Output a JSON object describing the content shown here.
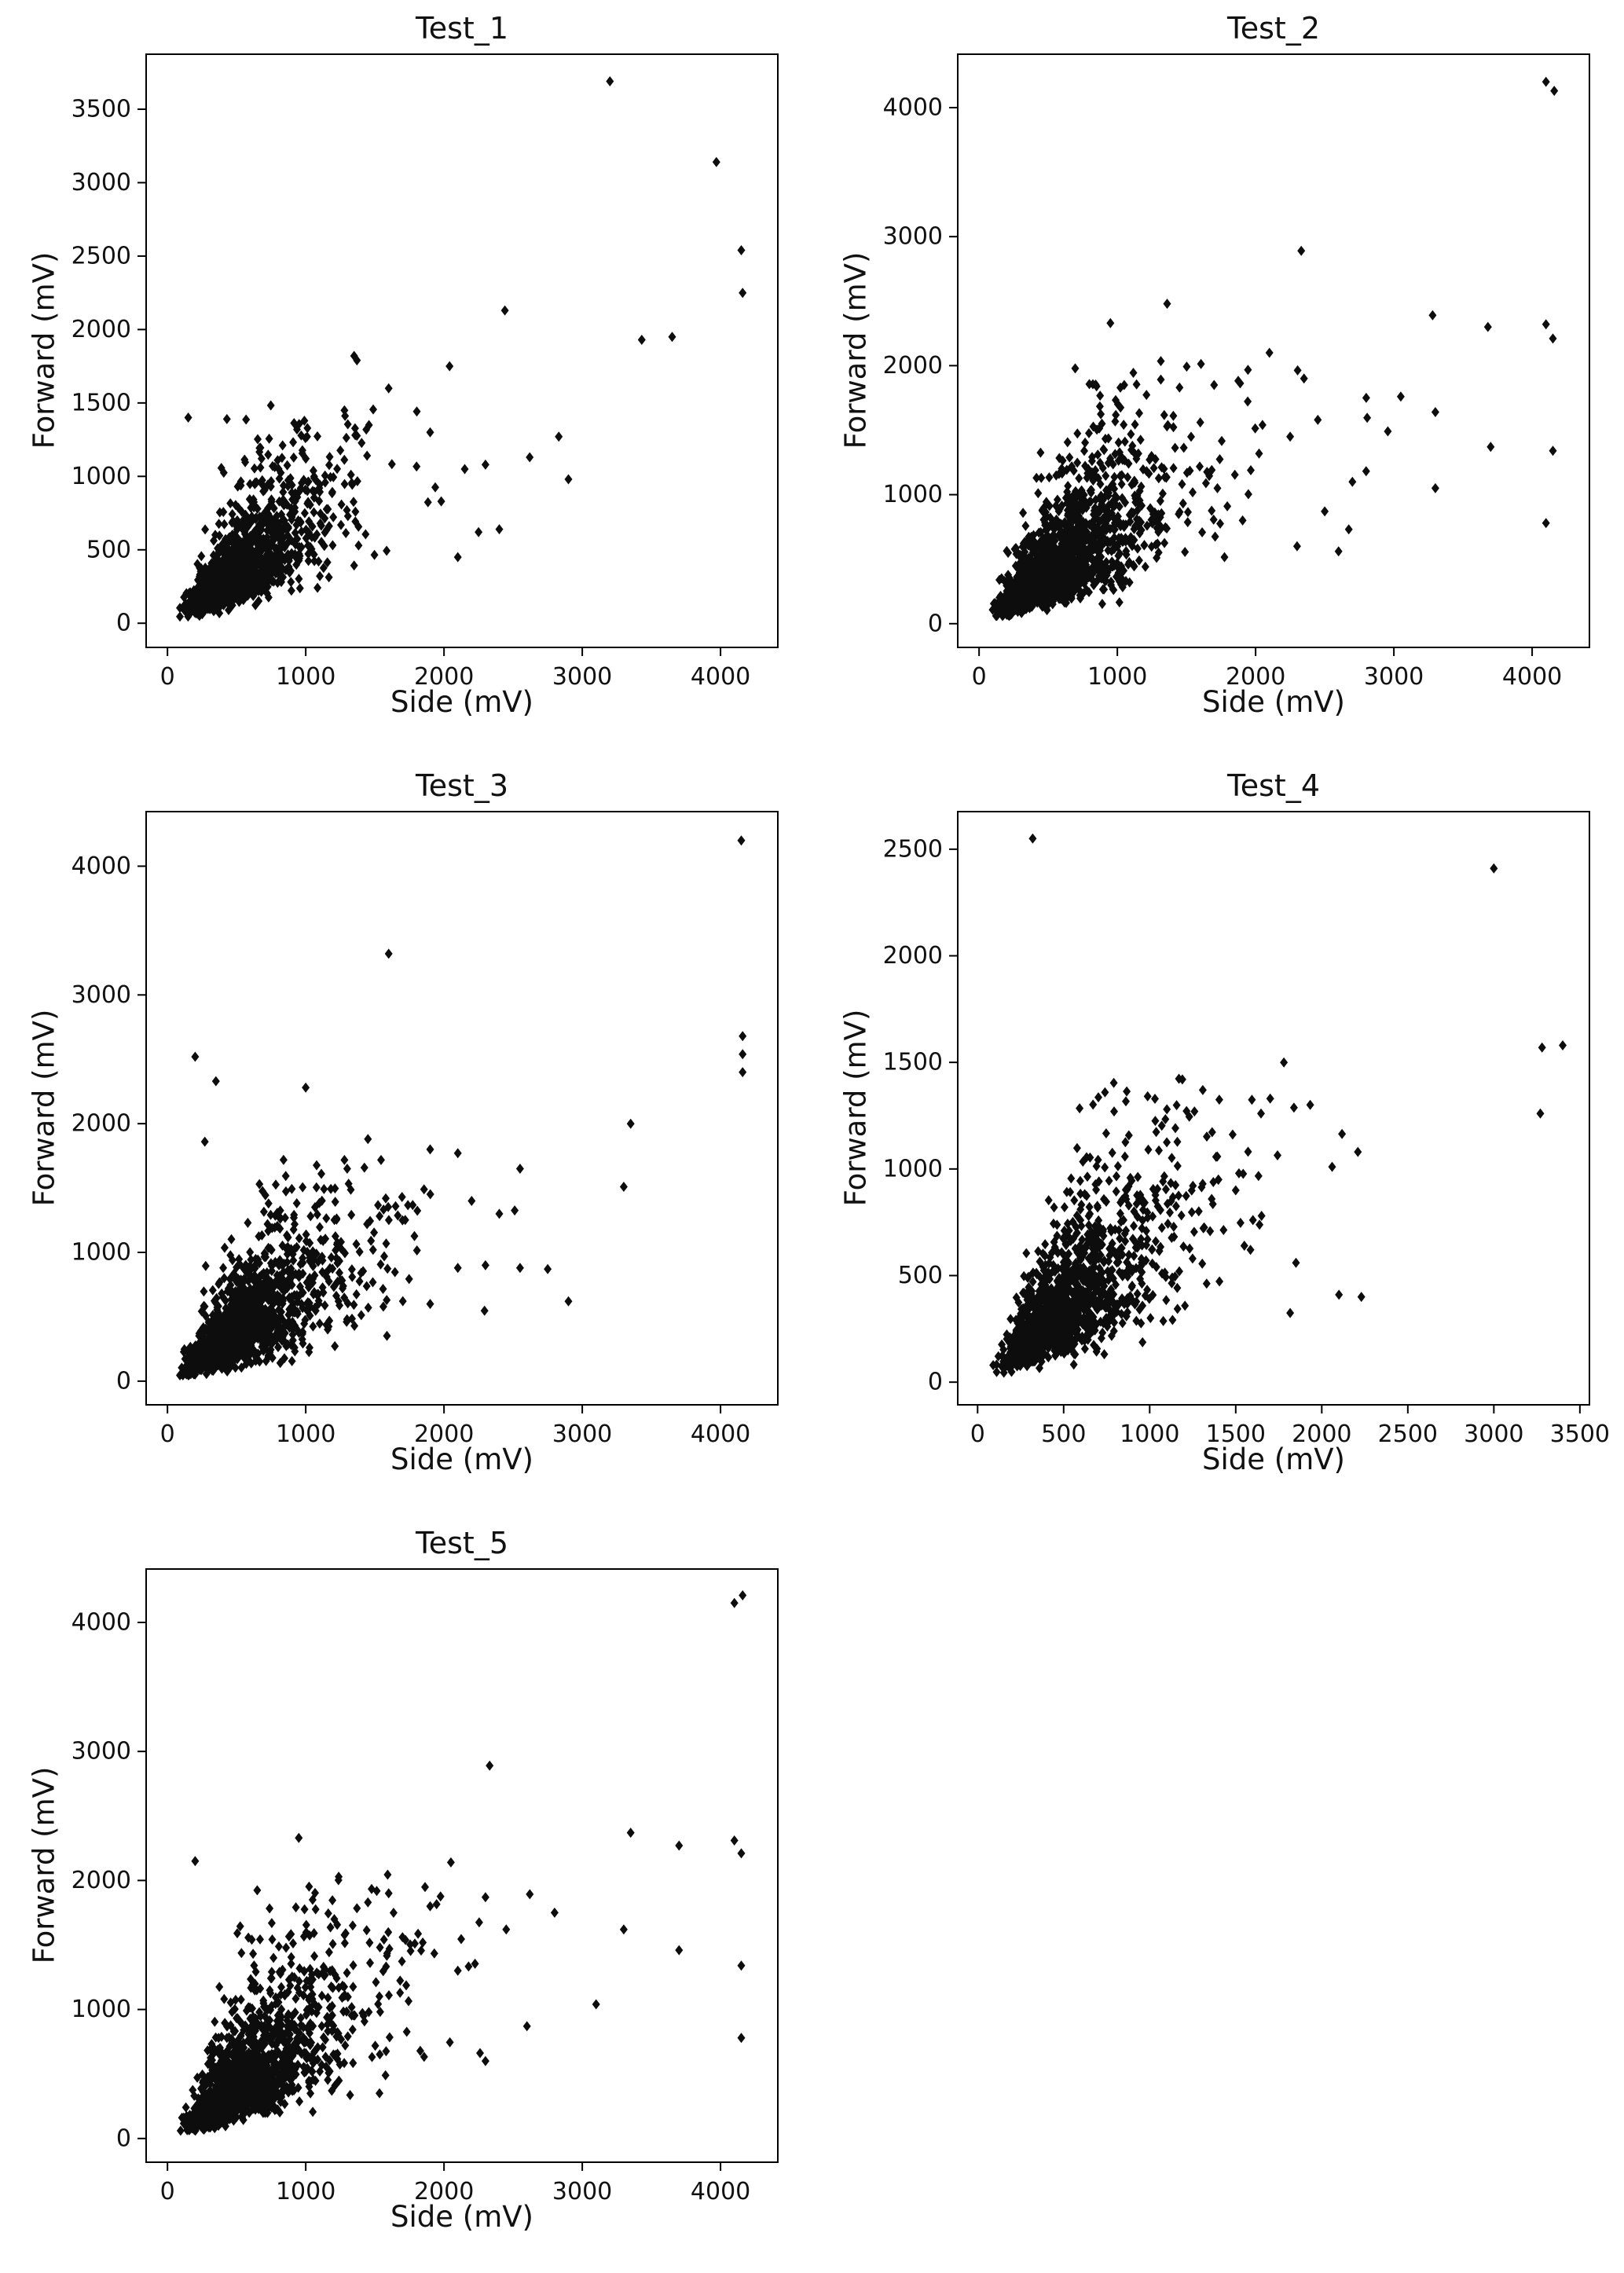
{
  "page": {
    "background": "#ffffff",
    "marker_color": "#0d0d0d",
    "axis_color": "#000000"
  },
  "chart_data": [
    {
      "type": "scatter",
      "title": "Test_1",
      "xlabel": "Side (mV)",
      "ylabel": "Forward (mV)",
      "xlim": [
        -160,
        4420
      ],
      "ylim": [
        -170,
        3880
      ],
      "xticks": [
        0,
        1000,
        2000,
        3000,
        4000
      ],
      "yticks": [
        0,
        500,
        1000,
        1500,
        2000,
        2500,
        3000,
        3500
      ],
      "grid": false,
      "legend": null,
      "marker": {
        "shape": "thin-diamond",
        "color": "#0d0d0d"
      },
      "outliers": [
        [
          3200,
          3690
        ],
        [
          3970,
          3140
        ],
        [
          4150,
          2540
        ],
        [
          4160,
          2250
        ],
        [
          2440,
          2130
        ],
        [
          3650,
          1950
        ],
        [
          3430,
          1930
        ],
        [
          2040,
          1750
        ],
        [
          1350,
          1820
        ],
        [
          1370,
          1790
        ],
        [
          1600,
          1600
        ],
        [
          2830,
          1270
        ],
        [
          2300,
          1080
        ],
        [
          2900,
          980
        ],
        [
          2620,
          1130
        ],
        [
          2250,
          620
        ],
        [
          2400,
          640
        ],
        [
          2100,
          450
        ],
        [
          1980,
          830
        ],
        [
          2150,
          1050
        ],
        [
          1900,
          1300
        ],
        [
          150,
          1400
        ],
        [
          430,
          1390
        ],
        [
          1280,
          1450
        ]
      ],
      "cluster": {
        "seed": 11,
        "count": 1400,
        "log_mean_x": 6.174,
        "log_sd_x": 0.52,
        "log_mean_ratio": -0.329,
        "log_sd_ratio": 0.42,
        "x_reject_above": 2450,
        "y_reject_above": 1520,
        "x_min": 90,
        "y_min": 45
      }
    },
    {
      "type": "scatter",
      "title": "Test_2",
      "xlabel": "Side (mV)",
      "ylabel": "Forward (mV)",
      "xlim": [
        -160,
        4420
      ],
      "ylim": [
        -190,
        4420
      ],
      "xticks": [
        0,
        1000,
        2000,
        3000,
        4000
      ],
      "yticks": [
        0,
        1000,
        2000,
        3000,
        4000
      ],
      "grid": false,
      "legend": null,
      "marker": {
        "shape": "thin-diamond",
        "color": "#0d0d0d"
      },
      "outliers": [
        [
          4100,
          4200
        ],
        [
          4160,
          4130
        ],
        [
          2330,
          2890
        ],
        [
          1360,
          2480
        ],
        [
          950,
          2330
        ],
        [
          3280,
          2390
        ],
        [
          4100,
          2320
        ],
        [
          3680,
          2300
        ],
        [
          4150,
          2210
        ],
        [
          2100,
          2100
        ],
        [
          1700,
          1850
        ],
        [
          1050,
          1850
        ],
        [
          850,
          1840
        ],
        [
          1450,
          1830
        ],
        [
          2350,
          1900
        ],
        [
          2800,
          1750
        ],
        [
          3300,
          1640
        ],
        [
          3700,
          1370
        ],
        [
          4150,
          1340
        ],
        [
          4100,
          780
        ],
        [
          3050,
          1760
        ],
        [
          2450,
          1580
        ],
        [
          1600,
          1560
        ],
        [
          2050,
          1540
        ],
        [
          2250,
          1450
        ],
        [
          3300,
          1050
        ],
        [
          2700,
          1100
        ],
        [
          2500,
          870
        ],
        [
          2300,
          600
        ],
        [
          2600,
          560
        ]
      ],
      "cluster": {
        "seed": 22,
        "count": 1500,
        "log_mean_x": 6.328,
        "log_sd_x": 0.56,
        "log_mean_ratio": -0.223,
        "log_sd_ratio": 0.46,
        "x_reject_above": 3050,
        "y_reject_above": 2050,
        "x_min": 95,
        "y_min": 60
      }
    },
    {
      "type": "scatter",
      "title": "Test_3",
      "xlabel": "Side (mV)",
      "ylabel": "Forward (mV)",
      "xlim": [
        -160,
        4420
      ],
      "ylim": [
        -190,
        4430
      ],
      "xticks": [
        0,
        1000,
        2000,
        3000,
        4000
      ],
      "yticks": [
        0,
        1000,
        2000,
        3000,
        4000
      ],
      "grid": false,
      "legend": null,
      "marker": {
        "shape": "thin-diamond",
        "color": "#0d0d0d"
      },
      "outliers": [
        [
          4150,
          4200
        ],
        [
          1600,
          3320
        ],
        [
          200,
          2520
        ],
        [
          4160,
          2680
        ],
        [
          4160,
          2540
        ],
        [
          4160,
          2400
        ],
        [
          350,
          2330
        ],
        [
          1000,
          2280
        ],
        [
          3350,
          2000
        ],
        [
          1450,
          1880
        ],
        [
          270,
          1860
        ],
        [
          1900,
          1800
        ],
        [
          2100,
          1770
        ],
        [
          1300,
          1650
        ],
        [
          2550,
          1650
        ],
        [
          3300,
          1510
        ],
        [
          2200,
          1400
        ],
        [
          2400,
          1300
        ],
        [
          1700,
          1250
        ],
        [
          2900,
          620
        ],
        [
          2550,
          880
        ],
        [
          2300,
          900
        ],
        [
          1900,
          600
        ],
        [
          2100,
          880
        ],
        [
          2750,
          870
        ]
      ],
      "cluster": {
        "seed": 33,
        "count": 1500,
        "log_mean_x": 6.254,
        "log_sd_x": 0.55,
        "log_mean_ratio": -0.288,
        "log_sd_ratio": 0.46,
        "x_reject_above": 2950,
        "y_reject_above": 1750,
        "x_min": 90,
        "y_min": 45
      }
    },
    {
      "type": "scatter",
      "title": "Test_4",
      "xlabel": "Side (mV)",
      "ylabel": "Forward (mV)",
      "xlim": [
        -120,
        3560
      ],
      "ylim": [
        -110,
        2680
      ],
      "xticks": [
        0,
        500,
        1000,
        1500,
        2000,
        2500,
        3000,
        3500
      ],
      "yticks": [
        0,
        500,
        1000,
        1500,
        2000,
        2500
      ],
      "grid": false,
      "legend": null,
      "marker": {
        "shape": "thin-diamond",
        "color": "#0d0d0d"
      },
      "outliers": [
        [
          320,
          2550
        ],
        [
          3000,
          2410
        ],
        [
          3280,
          1570
        ],
        [
          3400,
          1580
        ],
        [
          3270,
          1260
        ],
        [
          1780,
          1500
        ],
        [
          1190,
          1420
        ],
        [
          740,
          1360
        ],
        [
          1260,
          1270
        ],
        [
          1100,
          1280
        ],
        [
          2210,
          1080
        ],
        [
          2060,
          1010
        ],
        [
          1650,
          780
        ],
        [
          1600,
          760
        ],
        [
          1850,
          560
        ],
        [
          2100,
          410
        ],
        [
          2230,
          400
        ],
        [
          1500,
          900
        ],
        [
          1400,
          950
        ],
        [
          1550,
          640
        ]
      ],
      "cluster": {
        "seed": 44,
        "count": 1400,
        "log_mean_x": 6.215,
        "log_sd_x": 0.5,
        "log_mean_ratio": -0.386,
        "log_sd_ratio": 0.42,
        "x_reject_above": 2350,
        "y_reject_above": 1450,
        "x_min": 85,
        "y_min": 40
      }
    },
    {
      "type": "scatter",
      "title": "Test_5",
      "xlabel": "Side (mV)",
      "ylabel": "Forward (mV)",
      "xlim": [
        -160,
        4420
      ],
      "ylim": [
        -190,
        4420
      ],
      "xticks": [
        0,
        1000,
        2000,
        3000,
        4000
      ],
      "yticks": [
        0,
        1000,
        2000,
        3000,
        4000
      ],
      "grid": false,
      "legend": null,
      "marker": {
        "shape": "thin-diamond",
        "color": "#0d0d0d"
      },
      "outliers": [
        [
          4100,
          4150
        ],
        [
          4160,
          4210
        ],
        [
          2330,
          2890
        ],
        [
          950,
          2330
        ],
        [
          200,
          2150
        ],
        [
          3350,
          2370
        ],
        [
          3700,
          2270
        ],
        [
          4100,
          2310
        ],
        [
          4150,
          2210
        ],
        [
          2050,
          2140
        ],
        [
          1600,
          1900
        ],
        [
          1050,
          1850
        ],
        [
          1450,
          1830
        ],
        [
          2300,
          1870
        ],
        [
          2800,
          1750
        ],
        [
          3300,
          1620
        ],
        [
          3700,
          1460
        ],
        [
          4150,
          1340
        ],
        [
          4150,
          780
        ],
        [
          2450,
          1620
        ],
        [
          1700,
          1560
        ],
        [
          2100,
          1300
        ],
        [
          3100,
          1040
        ],
        [
          2600,
          870
        ],
        [
          2300,
          600
        ],
        [
          1900,
          1800
        ]
      ],
      "cluster": {
        "seed": 55,
        "count": 1500,
        "log_mean_x": 6.328,
        "log_sd_x": 0.56,
        "log_mean_ratio": -0.223,
        "log_sd_ratio": 0.46,
        "x_reject_above": 3050,
        "y_reject_above": 2050,
        "x_min": 95,
        "y_min": 60
      }
    }
  ]
}
